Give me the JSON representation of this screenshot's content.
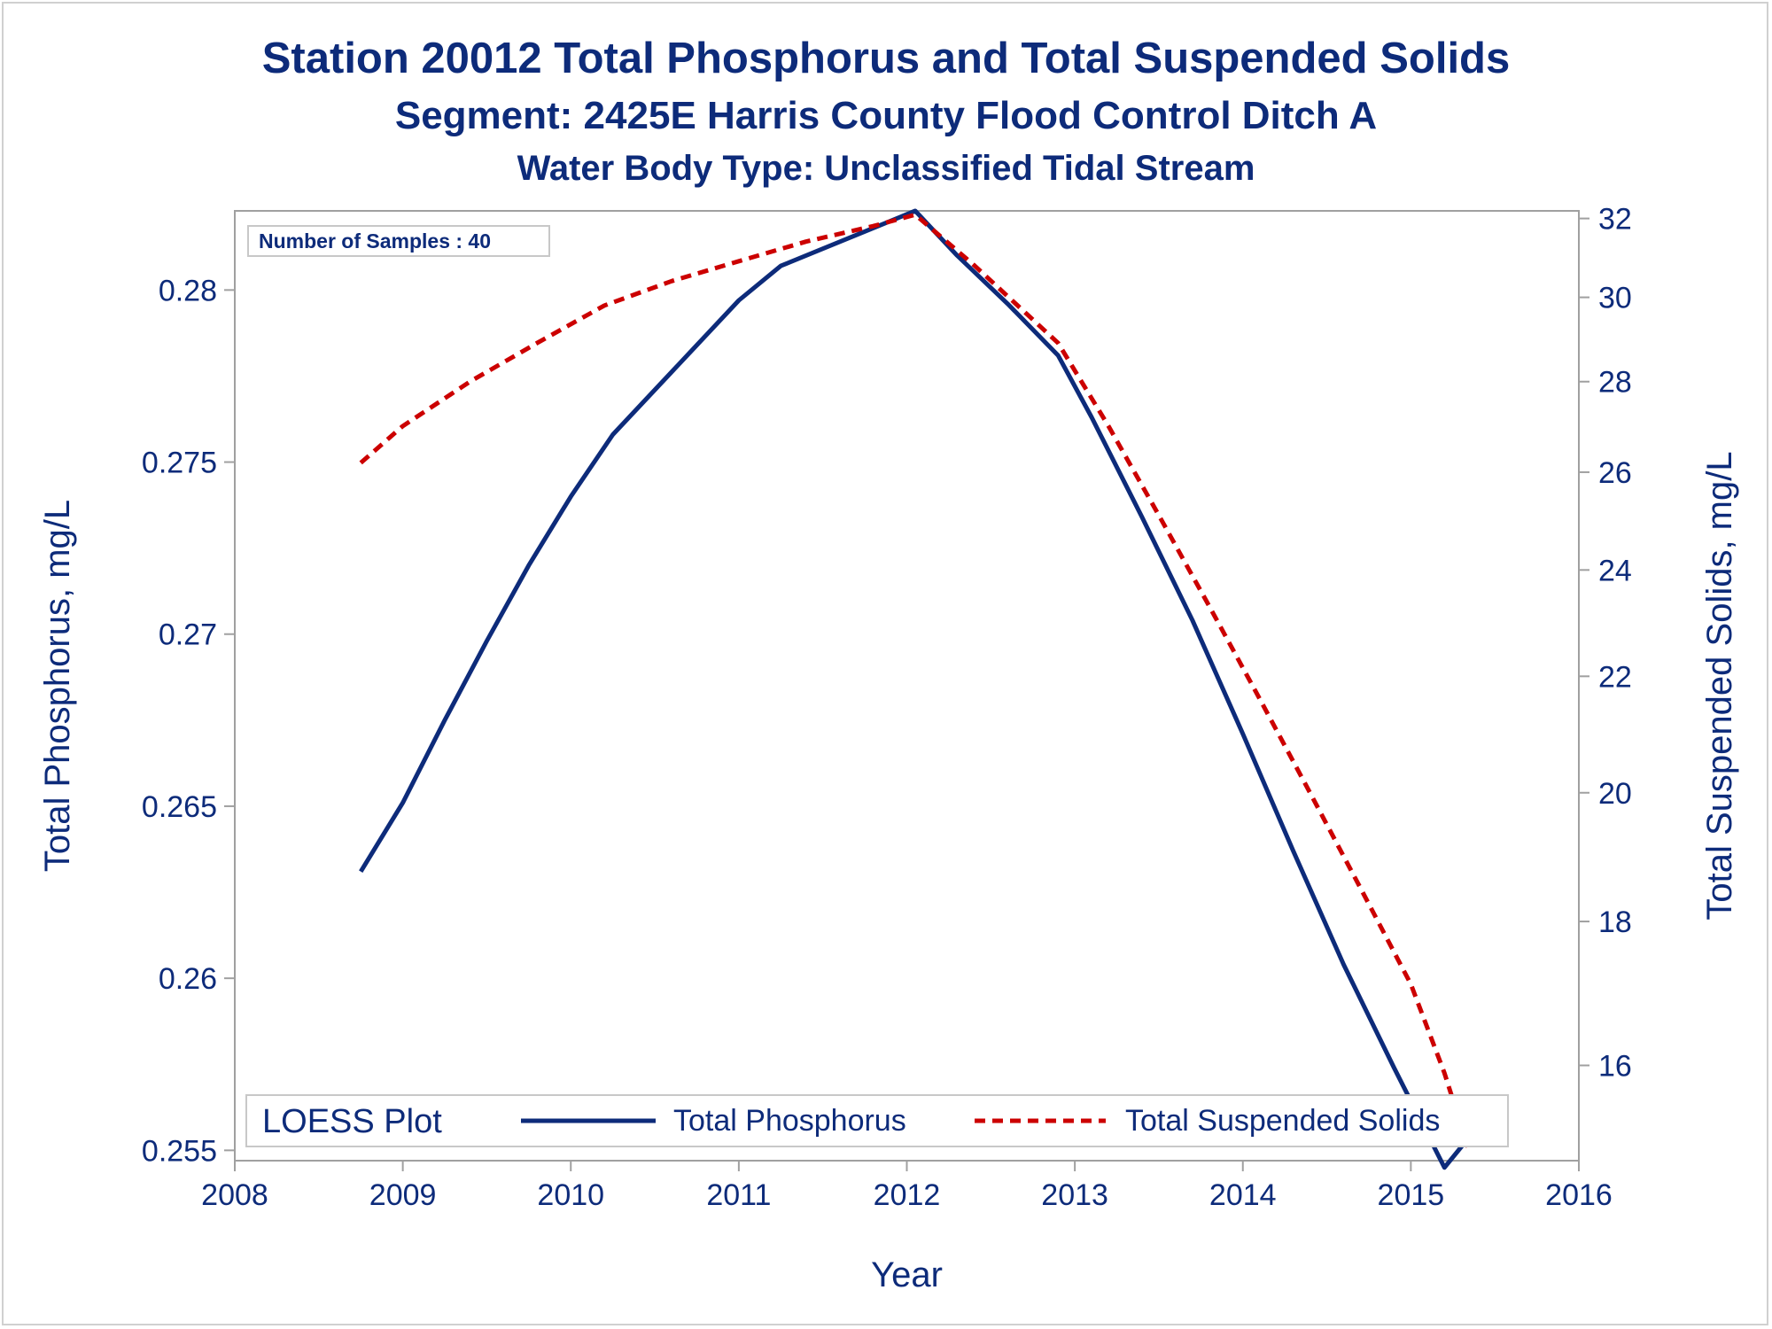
{
  "chart_data": {
    "type": "line",
    "title": "Station 20012  Total Phosphorus and Total Suspended Solids",
    "subtitle": "Segment: 2425E  Harris County Flood Control Ditch A",
    "subtitle2": "Water Body Type: Unclassified Tidal Stream",
    "xlabel": "Year",
    "ylabel_left": "Total Phosphorus, mg/L",
    "ylabel_right": "Total Suspended Solids, mg/L",
    "xlim": [
      2008,
      2016
    ],
    "ylim_left": [
      0.2547,
      0.2823
    ],
    "ylim_right": [
      14.8,
      32.2
    ],
    "right_axis_scale": "log",
    "x_ticks": [
      "2008",
      "2009",
      "2010",
      "2011",
      "2012",
      "2013",
      "2014",
      "2015",
      "2016"
    ],
    "y_left_ticks": [
      "0.255",
      "0.26",
      "0.265",
      "0.27",
      "0.275",
      "0.28"
    ],
    "y_right_ticks": [
      "16",
      "18",
      "20",
      "22",
      "24",
      "26",
      "28",
      "30",
      "32"
    ],
    "inset_label": "Number of Samples : 40",
    "legend": {
      "title": "LOESS Plot",
      "placement": "bottom-inside",
      "entries": [
        "Total Phosphorus",
        "Total Suspended Solids"
      ]
    },
    "grid": false,
    "series": [
      {
        "name": "Total Phosphorus",
        "axis": "left",
        "color": "#0d2b7a",
        "style": "solid",
        "x": [
          2008.75,
          2009.0,
          2009.25,
          2009.5,
          2009.75,
          2010.0,
          2010.25,
          2010.5,
          2010.75,
          2011.0,
          2011.25,
          2011.5,
          2011.75,
          2012.05,
          2012.3,
          2012.6,
          2012.9,
          2013.1,
          2013.4,
          2013.7,
          2014.0,
          2014.3,
          2014.6,
          2014.9,
          2015.2,
          2015.4
        ],
        "y": [
          0.2631,
          0.2651,
          0.2675,
          0.2698,
          0.272,
          0.274,
          0.2758,
          0.2771,
          0.2784,
          0.2797,
          0.2807,
          0.2812,
          0.2817,
          0.2823,
          0.281,
          0.2796,
          0.2781,
          0.2763,
          0.2734,
          0.2704,
          0.2671,
          0.2637,
          0.2604,
          0.2574,
          0.2545,
          0.2557
        ]
      },
      {
        "name": "Total Suspended Solids",
        "axis": "right",
        "color": "#cc0000",
        "style": "dashed",
        "x": [
          2008.75,
          2009.0,
          2009.4,
          2009.8,
          2010.2,
          2010.6,
          2011.0,
          2011.4,
          2011.8,
          2012.05,
          2012.4,
          2012.9,
          2013.2,
          2013.5,
          2013.8,
          2014.1,
          2014.4,
          2014.7,
          2015.0,
          2015.2,
          2015.35
        ],
        "y": [
          26.2,
          27.0,
          28.0,
          28.9,
          29.8,
          30.4,
          30.9,
          31.4,
          31.8,
          32.1,
          30.8,
          28.9,
          27.0,
          25.1,
          23.3,
          21.6,
          20.0,
          18.5,
          17.1,
          15.9,
          14.9
        ]
      }
    ]
  }
}
